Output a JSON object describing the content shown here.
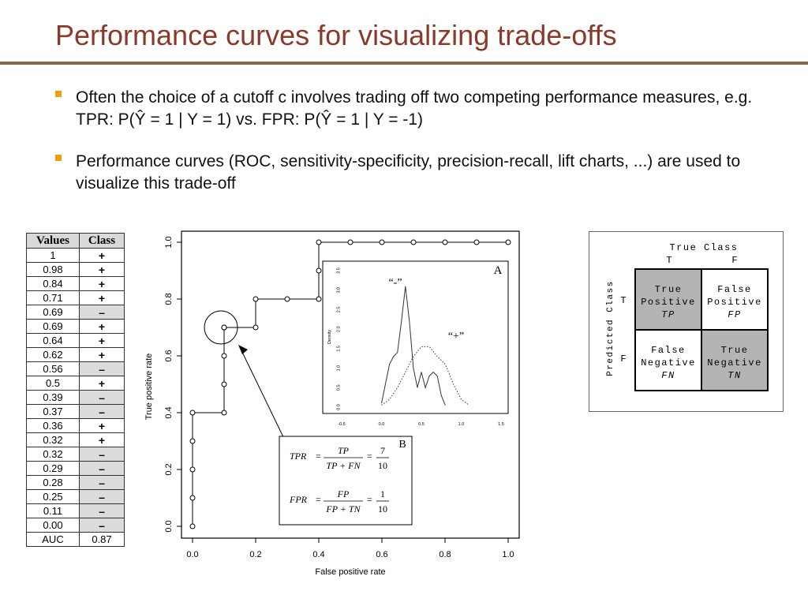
{
  "slide": {
    "title": "Performance curves for visualizing trade-offs",
    "bullets": [
      "Often the choice of a cutoff c involves trading off two competing performance measures, e.g. TPR: P(Ŷ = 1 | Y = 1) vs. FPR: P(Ŷ = 1 | Y = -1)",
      "Performance curves (ROC, sensitivity-specificity, precision-recall, lift charts, ...) are used to visualize this trade-off"
    ]
  },
  "table": {
    "headers": [
      "Values",
      "Class"
    ],
    "rows": [
      [
        "1",
        "+"
      ],
      [
        "0.98",
        "+"
      ],
      [
        "0.84",
        "+"
      ],
      [
        "0.71",
        "+"
      ],
      [
        "0.69",
        "–"
      ],
      [
        "0.69",
        "+"
      ],
      [
        "0.64",
        "+"
      ],
      [
        "0.62",
        "+"
      ],
      [
        "0.56",
        "–"
      ],
      [
        "0.5",
        "+"
      ],
      [
        "0.39",
        "–"
      ],
      [
        "0.37",
        "–"
      ],
      [
        "0.36",
        "+"
      ],
      [
        "0.32",
        "+"
      ],
      [
        "0.32",
        "–"
      ],
      [
        "0.29",
        "–"
      ],
      [
        "0.28",
        "–"
      ],
      [
        "0.25",
        "–"
      ],
      [
        "0.11",
        "–"
      ],
      [
        "0.00",
        "–"
      ]
    ],
    "auc_label": "AUC",
    "auc_value": "0.87"
  },
  "chart_data": [
    {
      "type": "line",
      "xlabel": "False positive rate",
      "ylabel": "True positive rate",
      "xlim": [
        0,
        1
      ],
      "ylim": [
        0,
        1
      ],
      "xticks": [
        "0.0",
        "0.2",
        "0.4",
        "0.6",
        "0.8",
        "1.0"
      ],
      "yticks": [
        "0.0",
        "0.2",
        "0.4",
        "0.6",
        "0.8",
        "1.0"
      ],
      "grid": false,
      "series": [
        {
          "x": [
            0,
            0,
            0,
            0,
            0,
            0.1,
            0.1,
            0.1,
            0.1,
            0.1,
            0.2,
            0.2,
            0.3,
            0.4,
            0.4,
            0.4,
            0.5,
            0.6,
            0.7,
            0.8,
            0.9,
            1.0
          ],
          "y": [
            0,
            0.1,
            0.2,
            0.3,
            0.4,
            0.4,
            0.5,
            0.6,
            0.7,
            0.7,
            0.7,
            0.8,
            0.8,
            0.8,
            0.9,
            1.0,
            1.0,
            1.0,
            1.0,
            1.0,
            1.0,
            1.0
          ]
        }
      ],
      "highlight_point": [
        0.1,
        0.7
      ]
    },
    {
      "type": "line",
      "panel_label": "A",
      "ylabel": "Density",
      "xlim": [
        -0.5,
        1.5
      ],
      "ylim": [
        0,
        3.5
      ],
      "xticks": [
        "-0.5",
        "0.0",
        "0.5",
        "1.0",
        "1.5"
      ],
      "yticks": [
        "0.0",
        "0.5",
        "1.0",
        "1.5",
        "2.0",
        "2.5",
        "3.0",
        "3.5"
      ],
      "series": [
        {
          "name": "“-”",
          "style": "solid",
          "x": [
            0.0,
            0.05,
            0.1,
            0.15,
            0.2,
            0.25,
            0.3,
            0.35,
            0.4,
            0.45,
            0.5,
            0.55,
            0.6,
            0.65,
            0.7,
            0.75,
            0.8
          ],
          "y": [
            0.1,
            0.6,
            1.1,
            1.3,
            1.4,
            2.2,
            3.1,
            2.2,
            1.0,
            0.5,
            0.9,
            0.5,
            0.8,
            0.9,
            0.8,
            0.3,
            0.05
          ]
        },
        {
          "name": "“+”",
          "style": "dotted",
          "x": [
            0.0,
            0.1,
            0.2,
            0.3,
            0.4,
            0.5,
            0.6,
            0.7,
            0.8,
            0.9,
            1.0,
            1.1
          ],
          "y": [
            0.05,
            0.2,
            0.5,
            0.9,
            1.3,
            1.55,
            1.55,
            1.3,
            1.1,
            0.6,
            0.2,
            0.05
          ]
        }
      ]
    }
  ],
  "formula_box": {
    "label": "B",
    "tpr": {
      "lhs": "TPR",
      "num": "TP",
      "den": "TP + FN",
      "rnum": "7",
      "rden": "10"
    },
    "fpr": {
      "lhs": "FPR",
      "num": "FP",
      "den": "FP + TN",
      "rnum": "1",
      "rden": "10"
    }
  },
  "confusion_matrix": {
    "true_class": "True Class",
    "predicted_class": "Predicted Class",
    "col_t": "T",
    "col_f": "F",
    "row_t": "T",
    "row_f": "F",
    "tp": [
      "True",
      "Positive",
      "TP"
    ],
    "fp": [
      "False",
      "Positive",
      "FP"
    ],
    "fn": [
      "False",
      "Negative",
      "FN"
    ],
    "tn": [
      "True",
      "Negative",
      "TN"
    ],
    "shade_color": "#b4b4b4"
  }
}
